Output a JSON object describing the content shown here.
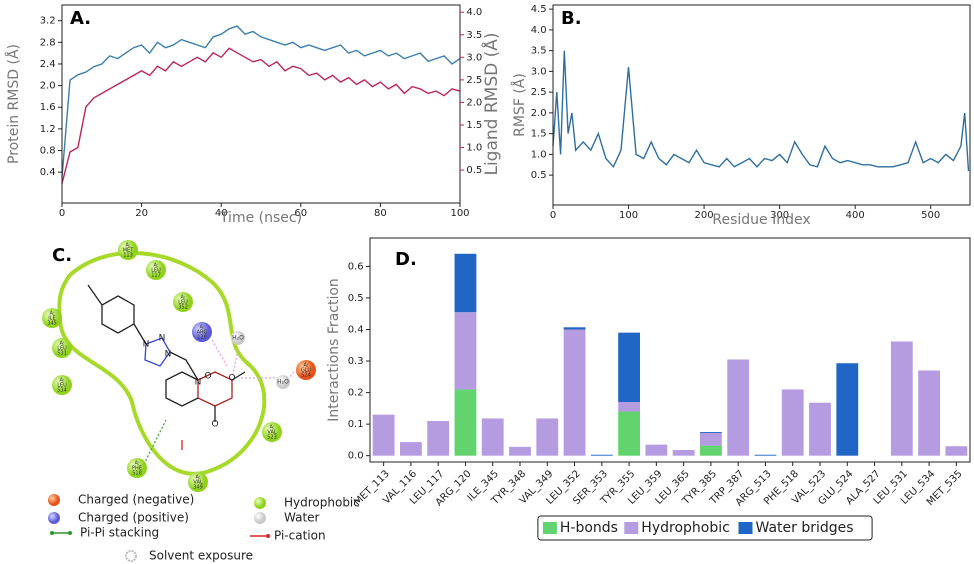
{
  "chart_data": [
    {
      "type": "line",
      "label": "A.",
      "x_label": "Time (nsec)",
      "y_label": "Protein RMSD (Å)",
      "y2_label": "Ligand RMSD (Å)",
      "xlim": [
        0,
        100
      ],
      "xticks": [
        0,
        20,
        40,
        60,
        80,
        100
      ],
      "ylim": [
        -0.17,
        3.49
      ],
      "yticks": [
        0.4,
        0.8,
        1.2,
        1.6,
        {
          "value": 2,
          "label": "2.0"
        },
        2.4,
        2.8,
        3.2
      ],
      "y2lim": [
        -0.23,
        4.16
      ],
      "y2ticks": [
        0.5,
        {
          "value": 1,
          "label": "1.0"
        },
        1.5,
        {
          "value": 2,
          "label": "2.0"
        },
        2.5,
        {
          "value": 3,
          "label": "3.0"
        },
        3.5,
        {
          "value": 4,
          "label": "4.0"
        }
      ],
      "y2_color": "#c0245e",
      "x": [
        0,
        2,
        4,
        6,
        8,
        10,
        12,
        14,
        16,
        18,
        20,
        22,
        24,
        26,
        28,
        30,
        32,
        34,
        36,
        38,
        40,
        42,
        44,
        46,
        48,
        50,
        52,
        54,
        56,
        58,
        60,
        62,
        64,
        66,
        68,
        70,
        72,
        74,
        76,
        78,
        80,
        82,
        84,
        86,
        88,
        90,
        92,
        94,
        96,
        98,
        100
      ],
      "series": [
        {
          "name": "Protein RMSD",
          "color": "#3a7fb0",
          "values": [
            0.3,
            2.1,
            2.2,
            2.25,
            2.35,
            2.4,
            2.55,
            2.5,
            2.6,
            2.7,
            2.75,
            2.6,
            2.8,
            2.7,
            2.75,
            2.85,
            2.8,
            2.75,
            2.7,
            2.9,
            2.95,
            3.05,
            3.1,
            2.95,
            3.0,
            2.9,
            2.85,
            2.8,
            2.75,
            2.8,
            2.7,
            2.75,
            2.7,
            2.65,
            2.7,
            2.75,
            2.6,
            2.65,
            2.55,
            2.6,
            2.65,
            2.55,
            2.6,
            2.5,
            2.55,
            2.6,
            2.45,
            2.5,
            2.55,
            2.4,
            2.5
          ]
        },
        {
          "name": "Ligand RMSD",
          "color": "#c0245e",
          "axis": "y2",
          "values": [
            0.2,
            0.9,
            1.0,
            1.9,
            2.1,
            2.2,
            2.3,
            2.4,
            2.5,
            2.6,
            2.7,
            2.6,
            2.8,
            2.7,
            2.9,
            2.8,
            2.9,
            3.0,
            2.9,
            3.1,
            3.0,
            3.2,
            3.1,
            3.0,
            2.9,
            2.95,
            2.8,
            2.9,
            2.7,
            2.8,
            2.75,
            2.6,
            2.65,
            2.5,
            2.6,
            2.45,
            2.55,
            2.4,
            2.5,
            2.35,
            2.45,
            2.3,
            2.4,
            2.2,
            2.35,
            2.3,
            2.2,
            2.25,
            2.15,
            2.3,
            2.25
          ]
        }
      ]
    },
    {
      "type": "line",
      "label": "B.",
      "x_label": "Residue Index",
      "y_label": "RMSF (Å)",
      "xlim": [
        0,
        552
      ],
      "xticks": [
        0,
        100,
        200,
        300,
        400,
        500
      ],
      "ylim": [
        -0.22,
        4.6
      ],
      "yticks": [
        0.5,
        {
          "value": 1,
          "label": "1.0"
        },
        1.5,
        {
          "value": 2,
          "label": "2.0"
        },
        2.5,
        {
          "value": 3,
          "label": "3.0"
        },
        3.5,
        {
          "value": 4,
          "label": "4.0"
        },
        4.5
      ],
      "x": [
        0,
        5,
        10,
        15,
        20,
        25,
        30,
        40,
        50,
        60,
        70,
        80,
        90,
        100,
        110,
        120,
        130,
        140,
        150,
        160,
        170,
        180,
        190,
        200,
        210,
        220,
        230,
        240,
        250,
        260,
        270,
        280,
        290,
        300,
        310,
        320,
        330,
        340,
        350,
        360,
        370,
        380,
        390,
        400,
        410,
        420,
        430,
        440,
        450,
        460,
        470,
        480,
        490,
        500,
        510,
        520,
        530,
        540,
        545,
        550
      ],
      "series": [
        {
          "name": "RMSF",
          "color": "#2f6f9f",
          "values": [
            1.2,
            2.5,
            1.0,
            3.5,
            1.5,
            2.0,
            1.1,
            1.3,
            1.1,
            1.5,
            0.9,
            0.7,
            1.1,
            3.1,
            1.0,
            0.9,
            1.3,
            0.9,
            0.75,
            1.0,
            0.9,
            0.8,
            1.1,
            0.8,
            0.75,
            0.7,
            0.9,
            0.7,
            0.8,
            0.9,
            0.7,
            0.9,
            0.85,
            1.0,
            0.8,
            1.3,
            1.0,
            0.75,
            0.7,
            1.2,
            0.9,
            0.8,
            0.85,
            0.8,
            0.75,
            0.75,
            0.7,
            0.7,
            0.7,
            0.75,
            0.8,
            1.3,
            0.8,
            0.9,
            0.8,
            1.0,
            0.85,
            1.2,
            2.0,
            0.6
          ]
        }
      ]
    },
    {
      "type": "stacked_bar",
      "label": "D.",
      "y_label": "Interactions Fraction",
      "legend": "bottom",
      "ylim": [
        -0.02,
        0.69
      ],
      "yticks": [
        {
          "value": 0,
          "label": "0.0"
        },
        0.1,
        0.2,
        0.3,
        0.4,
        0.5,
        0.6
      ],
      "categories": [
        "MET_113",
        "VAL_116",
        "LEU_117",
        "ARG_120",
        "ILE_345",
        "TYR_348",
        "VAL_349",
        "LEU_352",
        "SER_353",
        "TYR_355",
        "LEU_359",
        "LEU_365",
        "TYR_385",
        "TRP_387",
        "ARG_513",
        "PHE_518",
        "VAL_523",
        "GLU_524",
        "ALA_527",
        "LEU_531",
        "LEU_534",
        "MET_535"
      ],
      "series": [
        {
          "name": "H-bonds",
          "color": "#62d36e",
          "values": [
            0,
            0,
            0,
            0.21,
            0,
            0,
            0,
            0,
            0,
            0.14,
            0,
            0,
            0.032,
            0,
            0,
            0,
            0,
            0,
            0,
            0,
            0,
            0
          ]
        },
        {
          "name": "Hydrophobic",
          "color": "#b59be0",
          "values": [
            0.13,
            0.043,
            0.11,
            0.245,
            0.118,
            0.028,
            0.118,
            0.4,
            0,
            0.03,
            0.035,
            0.018,
            0.04,
            0.305,
            0,
            0.21,
            0.168,
            0,
            0,
            0.362,
            0.27,
            0.03
          ]
        },
        {
          "name": "Water bridges",
          "color": "#2166c4",
          "values": [
            0,
            0,
            0,
            0.185,
            0,
            0,
            0,
            0.007,
            0.003,
            0.22,
            0,
            0,
            0.003,
            0,
            0.003,
            0,
            0,
            0.293,
            0,
            0,
            0,
            0
          ]
        }
      ]
    }
  ],
  "diagram": {
    "label": "C.",
    "nodes": [
      {
        "chain": "A:",
        "res": "MET",
        "num": "113",
        "kind": "hydrophobic"
      },
      {
        "chain": "A:",
        "res": "LEU",
        "num": "117",
        "kind": "hydrophobic"
      },
      {
        "chain": "A:",
        "res": "LEU",
        "num": "352",
        "kind": "hydrophobic"
      },
      {
        "chain": "A:",
        "res": "ILE",
        "num": "345",
        "kind": "hydrophobic"
      },
      {
        "chain": "A:",
        "res": "ARG",
        "num": "120",
        "kind": "positive"
      },
      {
        "chain": "A:",
        "res": "LEU",
        "num": "531",
        "kind": "hydrophobic"
      },
      {
        "chain": "A:",
        "res": "GLU",
        "num": "524",
        "kind": "negative"
      },
      {
        "chain": "A:",
        "res": "LEU",
        "num": "534",
        "kind": "hydrophobic"
      },
      {
        "chain": "A:",
        "res": "VAL",
        "num": "523",
        "kind": "hydrophobic"
      },
      {
        "chain": "A:",
        "res": "PHE",
        "num": "518",
        "kind": "hydrophobic"
      },
      {
        "chain": "A:",
        "res": "VAL",
        "num": "349",
        "kind": "hydrophobic"
      }
    ],
    "waters": [
      "H₂O",
      "H₂O"
    ],
    "atoms": [
      "N",
      "N",
      "N",
      "N",
      "O",
      "O",
      "O"
    ],
    "legend": [
      "Charged (negative)",
      "Charged (positive)",
      "Pi-Pi stacking",
      "Hydrophobic",
      "Water",
      "Pi-cation",
      "Solvent exposure"
    ]
  }
}
